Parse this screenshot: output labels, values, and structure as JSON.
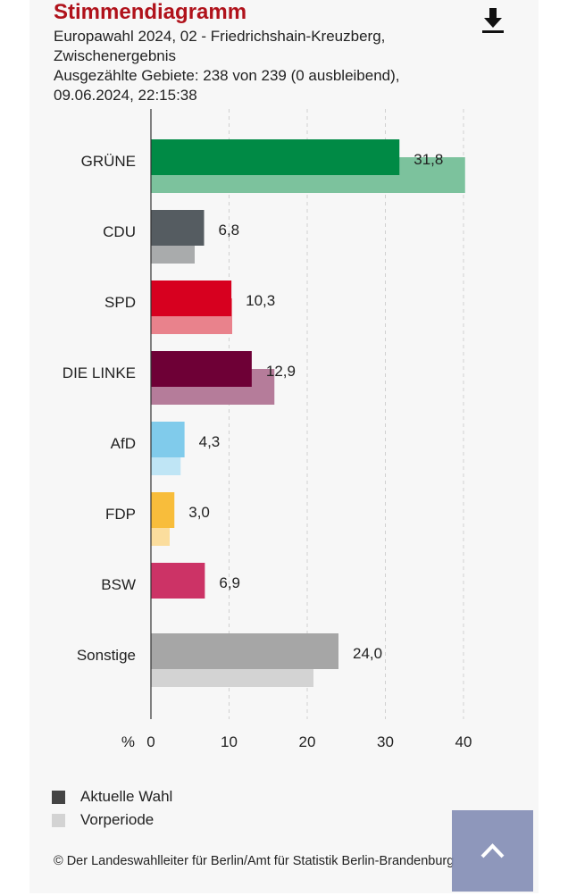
{
  "header": {
    "title": "Stimmendiagramm",
    "subtitle_line1": "Europawahl 2024, 02 - Friedrichshain-Kreuzberg,",
    "subtitle_line2": "Zwischenergebnis",
    "subtitle_line3": "Ausgezählte Gebiete: 238 von 239 (0 ausbleibend),",
    "subtitle_line4": "09.06.2024, 22:15:38",
    "download_icon": "download-icon"
  },
  "chart_data": {
    "type": "bar",
    "orientation": "horizontal",
    "categories": [
      "GRÜNE",
      "CDU",
      "SPD",
      "DIE LINKE",
      "AfD",
      "FDP",
      "BSW",
      "Sonstige"
    ],
    "series": [
      {
        "name": "Aktuelle Wahl",
        "values": [
          31.8,
          6.8,
          10.3,
          12.9,
          4.3,
          3.0,
          6.9,
          24.0
        ],
        "labels": [
          "31,8",
          "6,8",
          "10,3",
          "12,9",
          "4,3",
          "3,0",
          "6,9",
          "24,0"
        ],
        "colors": [
          "#008a45",
          "#555c61",
          "#d7001f",
          "#6e0036",
          "#80cbeb",
          "#f8bd3b",
          "#cc3366",
          "#a6a6a6"
        ]
      },
      {
        "name": "Vorperiode",
        "values": [
          40.2,
          5.6,
          10.4,
          15.8,
          3.8,
          2.4,
          null,
          20.8
        ],
        "colors": [
          "#7cc29d",
          "#a9abac",
          "#e9828c",
          "#b57c9a",
          "#bfe5f5",
          "#fbdd9d",
          "#e899b2",
          "#d3d3d3"
        ]
      }
    ],
    "xlabel": "%",
    "xticks": [
      "0",
      "10",
      "20",
      "30",
      "40"
    ],
    "xlim": [
      0,
      40
    ],
    "grid": true,
    "legend_placement": "bottom-left",
    "legend": [
      {
        "label": "Aktuelle Wahl",
        "color": "#444444"
      },
      {
        "label": "Vorperiode",
        "color": "#d3d3d3"
      }
    ]
  },
  "footer": {
    "copyright": "© Der Landeswahlleiter für Berlin/Amt für Statistik Berlin-Brandenburg",
    "scroll_top_icon": "chevron-up-icon"
  }
}
